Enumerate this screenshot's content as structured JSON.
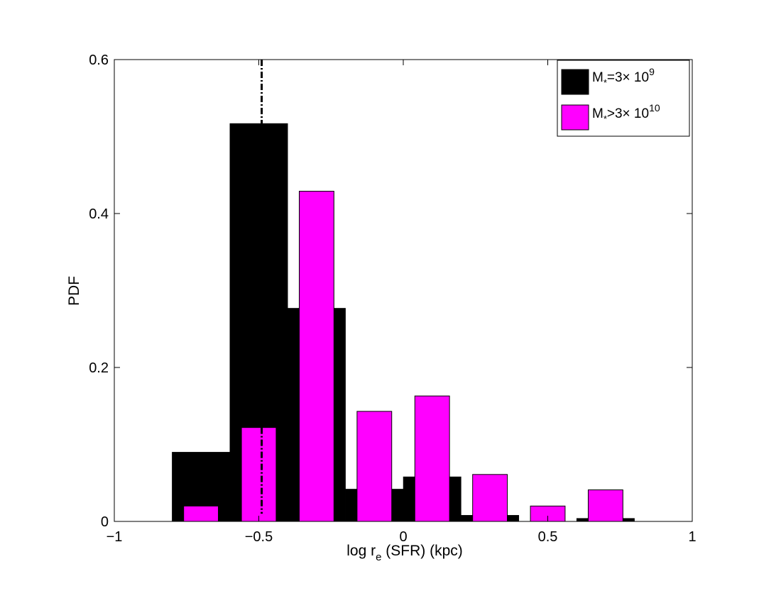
{
  "chart_data": {
    "type": "bar",
    "xlabel": "log r",
    "xlabel_sub": "e",
    "xlabel_tail": " (SFR) (kpc)",
    "ylabel": "PDF",
    "xlim": [
      -1,
      1
    ],
    "ylim": [
      0,
      0.6
    ],
    "xticks": [
      -1,
      -0.5,
      0,
      0.5,
      1
    ],
    "xtick_labels": [
      "−1",
      "−0.5",
      "0",
      "0.5",
      "1"
    ],
    "yticks": [
      0,
      0.2,
      0.4,
      0.6
    ],
    "ytick_labels": [
      "0",
      "0.2",
      "0.4",
      "0.6"
    ],
    "grid": false,
    "legend_position": "top-right",
    "series": [
      {
        "name": "M*=3× 10^9",
        "legend_main": "M",
        "legend_sub": "*",
        "legend_mid": "=3× 10",
        "legend_sup": "9",
        "color": "#000000",
        "bin_width": 0.2,
        "x": [
          -0.7,
          -0.5,
          -0.3,
          -0.1,
          0.1,
          0.3,
          0.5,
          0.7
        ],
        "values": [
          0.09,
          0.517,
          0.277,
          0.042,
          0.058,
          0.008,
          0.0,
          0.004
        ]
      },
      {
        "name": "M*>3× 10^10",
        "legend_main": "M",
        "legend_sub": "*",
        "legend_mid": ">3× 10",
        "legend_sup": "10",
        "color": "#ff00ff",
        "bin_width": 0.12,
        "x": [
          -0.7,
          -0.5,
          -0.3,
          -0.1,
          0.1,
          0.3,
          0.5,
          0.7
        ],
        "values": [
          0.02,
          0.122,
          0.429,
          0.143,
          0.163,
          0.061,
          0.02,
          0.041
        ]
      }
    ],
    "reference_lines": [
      {
        "x": -0.49,
        "y_from": 0.517,
        "y_to": 0.6,
        "color": "#000000",
        "style": "dash-dot"
      },
      {
        "x": -0.49,
        "y_from": 0.01,
        "y_to": 0.122,
        "color": "#000000",
        "style": "dash-dot"
      }
    ]
  }
}
